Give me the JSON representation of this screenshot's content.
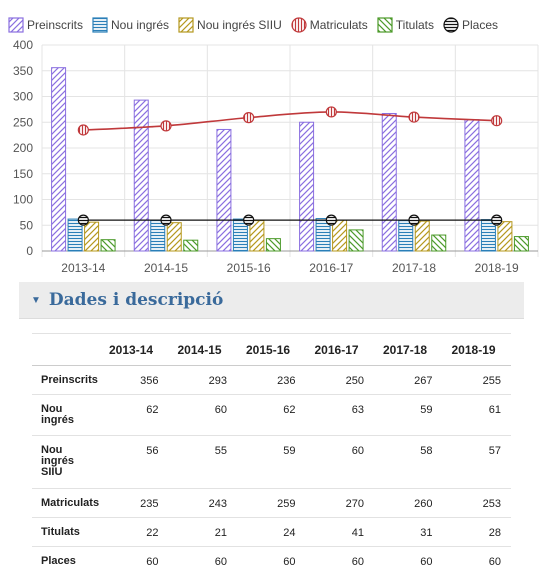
{
  "chart_data": {
    "type": "bar",
    "categories": [
      "2013-14",
      "2014-15",
      "2015-16",
      "2016-17",
      "2017-18",
      "2018-19"
    ],
    "ylim": [
      0,
      400
    ],
    "yticks": [
      0,
      50,
      100,
      150,
      200,
      250,
      300,
      350,
      400
    ],
    "grid": true,
    "legend_position": "top",
    "series": [
      {
        "name": "Preinscrits",
        "render": "bar",
        "color": "#8a6fe0",
        "pattern": "diag-right",
        "values": [
          356,
          293,
          236,
          250,
          267,
          255
        ]
      },
      {
        "name": "Nou ingrés",
        "render": "bar",
        "color": "#2a7fb8",
        "pattern": "horizontal",
        "values": [
          62,
          60,
          62,
          63,
          59,
          61
        ]
      },
      {
        "name": "Nou ingrés SIIU",
        "render": "bar",
        "color": "#b5981e",
        "pattern": "diag-right",
        "values": [
          56,
          55,
          59,
          60,
          58,
          57
        ]
      },
      {
        "name": "Matriculats",
        "render": "line",
        "color": "#c0393b",
        "marker": "vertical-stripes",
        "values": [
          235,
          243,
          259,
          270,
          260,
          253
        ]
      },
      {
        "name": "Titulats",
        "render": "bar",
        "color": "#4c9a2a",
        "pattern": "diag-left",
        "values": [
          22,
          21,
          24,
          41,
          31,
          28
        ]
      },
      {
        "name": "Places",
        "render": "line",
        "color": "#111111",
        "marker": "horizontal-stripes",
        "values": [
          60,
          60,
          60,
          60,
          60,
          60
        ]
      }
    ]
  },
  "section": {
    "title": "Dades i descripció"
  },
  "table": {
    "headers": [
      "",
      "2013-14",
      "2014-15",
      "2015-16",
      "2016-17",
      "2017-18",
      "2018-19"
    ],
    "rows": [
      {
        "label": "Preinscrits",
        "values": [
          "356",
          "293",
          "236",
          "250",
          "267",
          "255"
        ]
      },
      {
        "label": "Nou ingrés",
        "values": [
          "62",
          "60",
          "62",
          "63",
          "59",
          "61"
        ]
      },
      {
        "label": "Nou ingrés SIIU",
        "values": [
          "56",
          "55",
          "59",
          "60",
          "58",
          "57"
        ]
      },
      {
        "label": "Matriculats",
        "values": [
          "235",
          "243",
          "259",
          "270",
          "260",
          "253"
        ]
      },
      {
        "label": "Titulats",
        "values": [
          "22",
          "21",
          "24",
          "41",
          "31",
          "28"
        ]
      },
      {
        "label": "Places",
        "values": [
          "60",
          "60",
          "60",
          "60",
          "60",
          "60"
        ]
      }
    ]
  }
}
